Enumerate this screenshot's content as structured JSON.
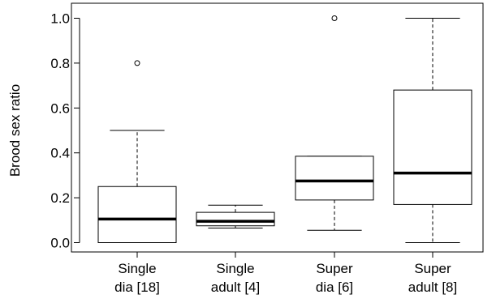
{
  "chart_data": {
    "type": "boxplot",
    "ylabel": "Brood sex ratio",
    "ylim": [
      0,
      1.0
    ],
    "yticks": [
      "0.0",
      "0.2",
      "0.4",
      "0.6",
      "0.8",
      "1.0"
    ],
    "ytick_values": [
      0,
      0.2,
      0.4,
      0.6,
      0.8,
      1.0
    ],
    "grid": false,
    "legend": "none",
    "categories": [
      {
        "line1": "Single",
        "line2": "dia [18]"
      },
      {
        "line1": "Single",
        "line2": "adult [4]"
      },
      {
        "line1": "Super",
        "line2": "dia [6]"
      },
      {
        "line1": "Super",
        "line2": "adult [8]"
      }
    ],
    "boxes": [
      {
        "whisker_low": 0.0,
        "q1": 0.0,
        "median": 0.105,
        "q3": 0.25,
        "whisker_high": 0.5,
        "outliers": [
          0.8
        ]
      },
      {
        "whisker_low": 0.065,
        "q1": 0.075,
        "median": 0.095,
        "q3": 0.135,
        "whisker_high": 0.167,
        "outliers": []
      },
      {
        "whisker_low": 0.055,
        "q1": 0.19,
        "median": 0.275,
        "q3": 0.385,
        "whisker_high": 0.385,
        "outliers": [
          1.0
        ]
      },
      {
        "whisker_low": 0.0,
        "q1": 0.17,
        "median": 0.31,
        "q3": 0.68,
        "whisker_high": 1.0,
        "outliers": []
      }
    ]
  }
}
